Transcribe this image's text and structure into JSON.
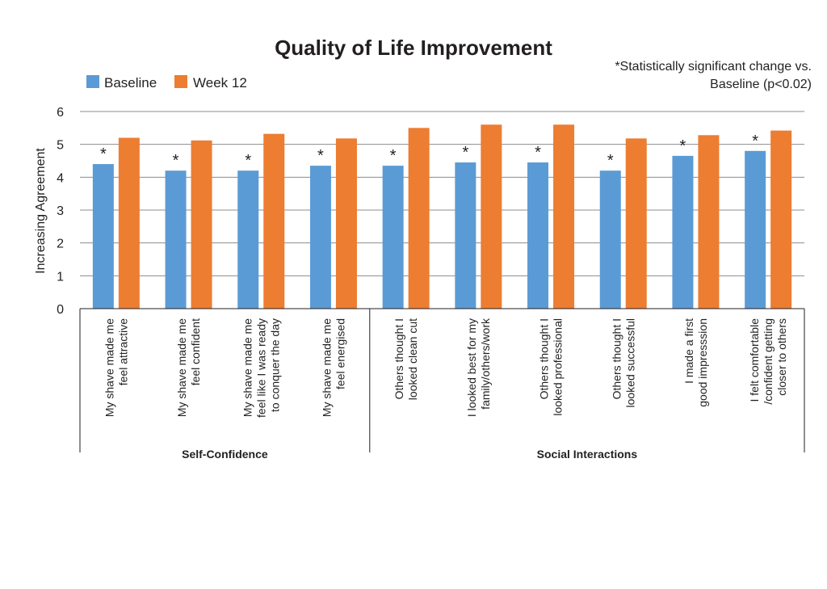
{
  "chart_data": {
    "type": "bar",
    "title": "Quality of Life Improvement",
    "note": [
      "*Statistically significant change vs.",
      "Baseline (p<0.02)"
    ],
    "ylabel": "Increasing Agreement",
    "ylim": [
      0,
      6
    ],
    "yticks": [
      "0",
      "1",
      "2",
      "3",
      "4",
      "5",
      "6"
    ],
    "grid": true,
    "legend_position": "top-left",
    "categories": [
      [
        "My shave made me",
        "feel attractive"
      ],
      [
        "My shave made me",
        "feel confident"
      ],
      [
        "My shave made me",
        "feel like I was ready",
        "to conquer the day"
      ],
      [
        "My shave made me",
        "feel energised"
      ],
      [
        "Others thought I",
        "looked clean cut"
      ],
      [
        "I looked best for my",
        "family/others/work"
      ],
      [
        "Others thought I",
        "looked professional"
      ],
      [
        "Others thought I",
        "looked successful"
      ],
      [
        "I made a first",
        "good impresssion"
      ],
      [
        "I felt comfortable",
        "/confident getting",
        "closer to others"
      ]
    ],
    "groups": [
      {
        "name": "Self-Confidence",
        "count": 4
      },
      {
        "name": "Social Interactions",
        "count": 6
      }
    ],
    "significance_marker": "*",
    "series": [
      {
        "name": "Baseline",
        "color": "#5b9bd5",
        "values": [
          4.4,
          4.2,
          4.2,
          4.35,
          4.35,
          4.45,
          4.45,
          4.2,
          4.65,
          4.8
        ]
      },
      {
        "name": "Week 12",
        "color": "#ed7d31",
        "values": [
          5.2,
          5.12,
          5.32,
          5.18,
          5.5,
          5.6,
          5.6,
          5.18,
          5.28,
          5.42
        ]
      }
    ]
  }
}
